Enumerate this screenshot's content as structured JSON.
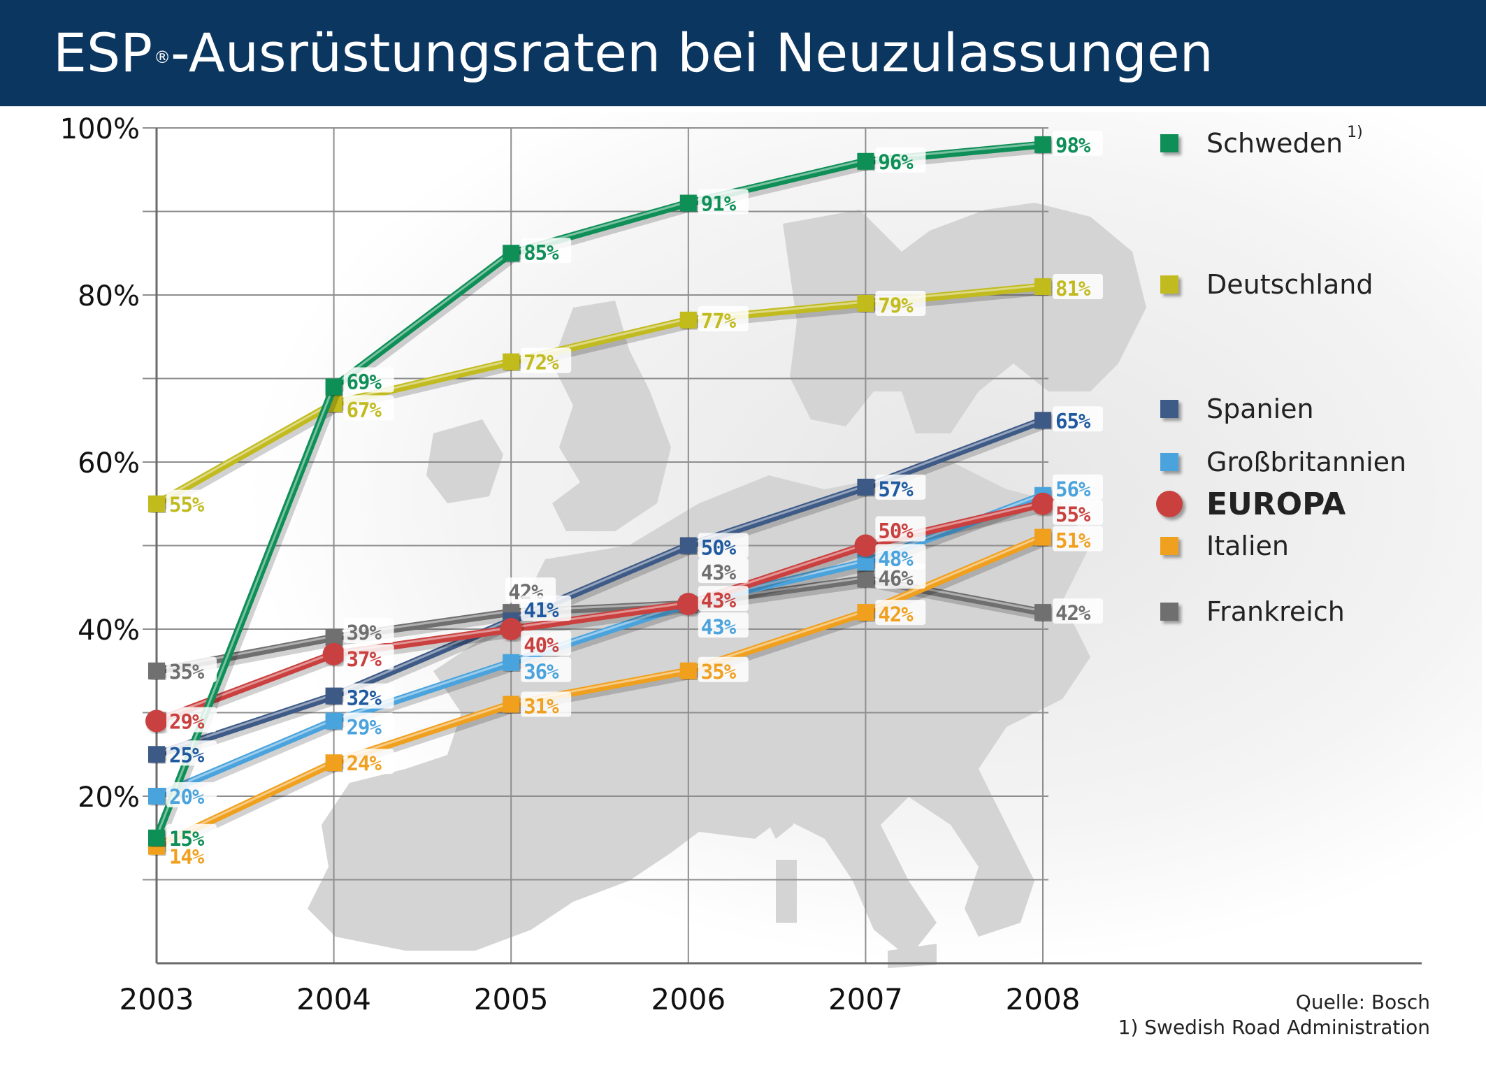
{
  "header": {
    "title": "ESP",
    "title_sup": "®",
    "title_rest": "-Ausrüstungsraten bei Neuzulassungen"
  },
  "chart_data": {
    "type": "line",
    "x": [
      "2003",
      "2004",
      "2005",
      "2006",
      "2007",
      "2008"
    ],
    "y_ticks": [
      "20%",
      "40%",
      "60%",
      "80%",
      "100%"
    ],
    "ylim": [
      0,
      100
    ],
    "grid": true,
    "legend_position": "right",
    "series": [
      {
        "name": "Schweden",
        "note": "1)",
        "color": "#0e8f57",
        "marker": "square",
        "values": [
          15,
          69,
          85,
          91,
          96,
          98
        ],
        "labels": [
          "15%",
          "69%",
          "85%",
          "91%",
          "96%",
          "98%"
        ]
      },
      {
        "name": "Deutschland",
        "color": "#c1bb1f",
        "marker": "square",
        "values": [
          55,
          67,
          72,
          77,
          79,
          81
        ],
        "labels": [
          "55%",
          "67%",
          "72%",
          "77%",
          "79%",
          "81%"
        ]
      },
      {
        "name": "Spanien",
        "color": "#3e5a86",
        "marker": "square",
        "label_color": "#1f5aa0",
        "values": [
          25,
          32,
          41,
          50,
          57,
          65
        ],
        "labels": [
          "25%",
          "32%",
          "41%",
          "50%",
          "57%",
          "65%"
        ]
      },
      {
        "name": "Großbritannien",
        "color": "#4aa3dc",
        "marker": "square",
        "values": [
          20,
          29,
          36,
          43,
          48,
          56
        ],
        "labels": [
          "20%",
          "29%",
          "36%",
          "43%",
          "48%",
          "56%"
        ]
      },
      {
        "name": "EUROPA",
        "color": "#c9403f",
        "marker": "circle",
        "bold": true,
        "values": [
          29,
          37,
          40,
          43,
          50,
          55
        ],
        "labels": [
          "29%",
          "37%",
          "40%",
          "43%",
          "50%",
          "55%"
        ]
      },
      {
        "name": "Italien",
        "color": "#f0a01f",
        "marker": "square",
        "values": [
          14,
          24,
          31,
          35,
          42,
          51
        ],
        "labels": [
          "14%",
          "24%",
          "31%",
          "35%",
          "42%",
          "51%"
        ]
      },
      {
        "name": "Frankreich",
        "color": "#6f6f6f",
        "marker": "square",
        "values": [
          35,
          39,
          42,
          43,
          46,
          42
        ],
        "labels": [
          "35%",
          "39%",
          "42%",
          "43%",
          "46%",
          "42%"
        ]
      }
    ]
  },
  "footer": {
    "source": "Quelle: Bosch",
    "footnote": "1) Swedish Road Administration"
  }
}
